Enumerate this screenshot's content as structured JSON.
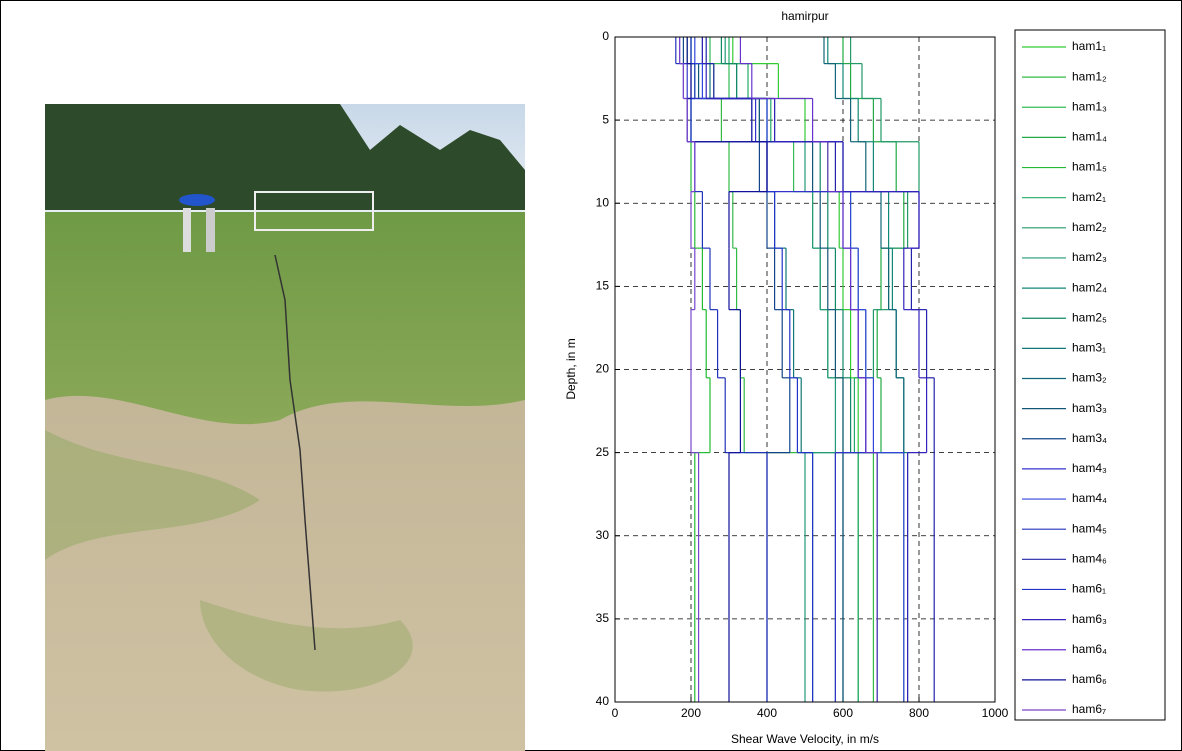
{
  "chart_data": {
    "type": "step",
    "title": "hamirpur",
    "xlabel": "Shear Wave Velocity, in m/s",
    "ylabel": "Depth, in m",
    "xlim": [
      0,
      1000
    ],
    "xticks": [
      0,
      200,
      400,
      600,
      800,
      1000
    ],
    "ylim": [
      0,
      40
    ],
    "yticks": [
      0,
      5,
      10,
      15,
      20,
      25,
      30,
      35,
      40
    ],
    "y_inverted": true,
    "grid": true,
    "layer_boundaries": [
      0,
      1.6,
      3.7,
      6.3,
      9.3,
      12.7,
      16.4,
      20.5,
      25,
      40
    ],
    "series": [
      {
        "name": "ham1₁",
        "color": "#33cc33",
        "values": [
          310,
          430,
          500,
          560,
          590,
          600,
          620,
          640,
          690
        ]
      },
      {
        "name": "ham1₂",
        "color": "#33bb44",
        "values": [
          200,
          260,
          280,
          300,
          310,
          320,
          330,
          340,
          680
        ]
      },
      {
        "name": "ham1₃",
        "color": "#33bb55",
        "values": [
          250,
          300,
          420,
          470,
          520,
          540,
          560,
          600,
          640
        ]
      },
      {
        "name": "ham1₄",
        "color": "#22aa44",
        "values": [
          600,
          620,
          680,
          740,
          760,
          700,
          690,
          700,
          760
        ]
      },
      {
        "name": "ham1₅",
        "color": "#22bb33",
        "values": [
          190,
          210,
          200,
          200,
          210,
          230,
          240,
          250,
          210
        ]
      },
      {
        "name": "ham2₁",
        "color": "#22aa66",
        "values": [
          300,
          350,
          410,
          600,
          620,
          640,
          660,
          630,
          640
        ]
      },
      {
        "name": "ham2₂",
        "color": "#229966",
        "values": [
          620,
          650,
          700,
          800,
          770,
          720,
          680,
          660,
          690
        ]
      },
      {
        "name": "ham2₃",
        "color": "#229977",
        "values": [
          290,
          320,
          400,
          500,
          520,
          540,
          560,
          580,
          500
        ]
      },
      {
        "name": "ham2₄",
        "color": "#118877",
        "values": [
          560,
          600,
          640,
          680,
          720,
          730,
          740,
          760,
          770
        ]
      },
      {
        "name": "ham2₅",
        "color": "#118866",
        "values": [
          280,
          320,
          400,
          540,
          560,
          580,
          600,
          620,
          580
        ]
      },
      {
        "name": "ham3₁",
        "color": "#117777",
        "values": [
          230,
          250,
          380,
          400,
          420,
          450,
          470,
          490,
          520
        ]
      },
      {
        "name": "ham3₂",
        "color": "#116677",
        "values": [
          550,
          580,
          620,
          660,
          700,
          720,
          740,
          760,
          600
        ]
      },
      {
        "name": "ham3₃",
        "color": "#115577",
        "values": [
          200,
          220,
          380,
          520,
          540,
          560,
          580,
          600,
          600
        ]
      },
      {
        "name": "ham3₄",
        "color": "#114488",
        "values": [
          180,
          200,
          360,
          380,
          400,
          420,
          440,
          460,
          400
        ]
      },
      {
        "name": "ham4₃",
        "color": "#3333cc",
        "values": [
          170,
          190,
          370,
          400,
          600,
          620,
          640,
          660,
          580
        ]
      },
      {
        "name": "ham4₄",
        "color": "#3344dd",
        "values": [
          210,
          230,
          400,
          600,
          620,
          640,
          660,
          680,
          760
        ]
      },
      {
        "name": "ham4₅",
        "color": "#2233bb",
        "values": [
          160,
          180,
          200,
          210,
          230,
          250,
          270,
          290,
          400
        ]
      },
      {
        "name": "ham4₆",
        "color": "#2222aa",
        "values": [
          240,
          260,
          360,
          580,
          800,
          780,
          820,
          840,
          840
        ]
      },
      {
        "name": "ham6₁",
        "color": "#2233cc",
        "values": [
          200,
          210,
          200,
          400,
          420,
          440,
          460,
          480,
          520
        ]
      },
      {
        "name": "ham6₃",
        "color": "#3322bb",
        "values": [
          230,
          240,
          420,
          600,
          800,
          760,
          800,
          820,
          770
        ]
      },
      {
        "name": "ham6₄",
        "color": "#6633cc",
        "values": [
          330,
          360,
          520,
          560,
          600,
          620,
          640,
          660,
          690
        ]
      },
      {
        "name": "ham6₆",
        "color": "#111199",
        "values": [
          190,
          200,
          190,
          400,
          300,
          300,
          330,
          330,
          300
        ]
      },
      {
        "name": "ham6₇",
        "color": "#7744cc",
        "values": [
          170,
          180,
          190,
          210,
          200,
          210,
          200,
          200,
          220
        ]
      }
    ]
  }
}
